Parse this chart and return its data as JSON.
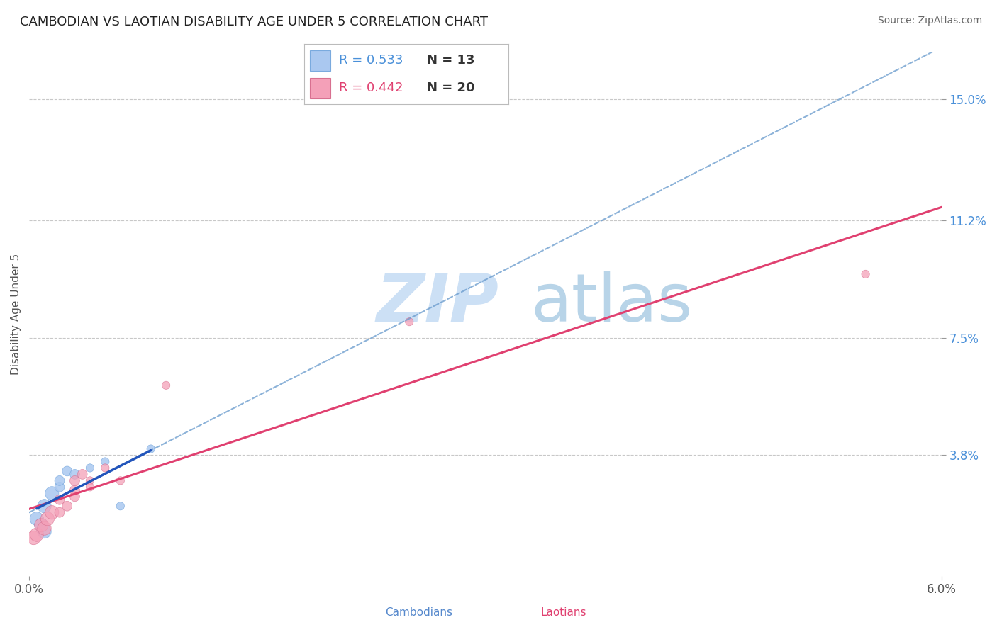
{
  "title": "CAMBODIAN VS LAOTIAN DISABILITY AGE UNDER 5 CORRELATION CHART",
  "source": "Source: ZipAtlas.com",
  "ylabel": "Disability Age Under 5",
  "xlim": [
    0.0,
    0.06
  ],
  "ylim": [
    0.0,
    0.165
  ],
  "xtick_labels": [
    "0.0%",
    "6.0%"
  ],
  "ytick_positions": [
    0.038,
    0.075,
    0.112,
    0.15
  ],
  "ytick_labels": [
    "3.8%",
    "7.5%",
    "11.2%",
    "15.0%"
  ],
  "grid_color": "#c8c8c8",
  "background_color": "#ffffff",
  "cambodian_color": "#aac8f0",
  "cambodian_edge": "#7aaade",
  "laotian_color": "#f4a0b8",
  "laotian_edge": "#d87090",
  "cambodian_R": 0.533,
  "cambodian_N": 13,
  "laotian_R": 0.442,
  "laotian_N": 20,
  "cambodian_trend_color": "#2255bb",
  "laotian_trend_color": "#e04070",
  "dashed_color": "#6699cc",
  "cambodian_points": [
    [
      0.0005,
      0.018
    ],
    [
      0.0008,
      0.016
    ],
    [
      0.001,
      0.014
    ],
    [
      0.001,
      0.022
    ],
    [
      0.0015,
      0.026
    ],
    [
      0.002,
      0.028
    ],
    [
      0.002,
      0.03
    ],
    [
      0.0025,
      0.033
    ],
    [
      0.003,
      0.032
    ],
    [
      0.004,
      0.034
    ],
    [
      0.005,
      0.036
    ],
    [
      0.006,
      0.022
    ],
    [
      0.008,
      0.04
    ]
  ],
  "laotian_points": [
    [
      0.0003,
      0.012
    ],
    [
      0.0005,
      0.013
    ],
    [
      0.0008,
      0.016
    ],
    [
      0.001,
      0.015
    ],
    [
      0.0012,
      0.018
    ],
    [
      0.0015,
      0.02
    ],
    [
      0.002,
      0.02
    ],
    [
      0.002,
      0.024
    ],
    [
      0.0025,
      0.022
    ],
    [
      0.003,
      0.025
    ],
    [
      0.003,
      0.027
    ],
    [
      0.003,
      0.03
    ],
    [
      0.0035,
      0.032
    ],
    [
      0.004,
      0.03
    ],
    [
      0.004,
      0.028
    ],
    [
      0.005,
      0.034
    ],
    [
      0.006,
      0.03
    ],
    [
      0.009,
      0.06
    ],
    [
      0.025,
      0.08
    ],
    [
      0.055,
      0.095
    ]
  ],
  "watermark_zip": "ZIP",
  "watermark_atlas": "atlas",
  "watermark_color_zip": "#cce0f5",
  "watermark_color_atlas": "#b8d4e8",
  "title_fontsize": 13,
  "label_fontsize": 11,
  "tick_fontsize": 12,
  "legend_fontsize": 13
}
